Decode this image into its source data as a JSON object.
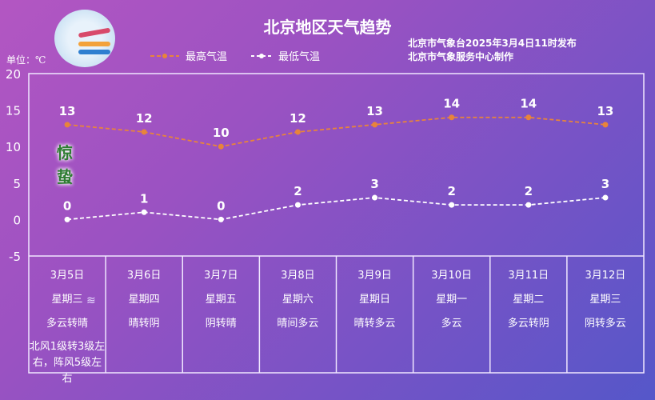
{
  "header": {
    "title": "北京地区天气趋势",
    "issuer_line1": "北京市气象台2025年3月4日11时发布",
    "issuer_line2": "北京市气象服务中心制作",
    "unit": "单位：℃",
    "solar_term": [
      "惊",
      "蛰"
    ]
  },
  "chart_data": {
    "type": "line",
    "categories": [
      "3月5日",
      "3月6日",
      "3月7日",
      "3月8日",
      "3月9日",
      "3月10日",
      "3月11日",
      "3月12日"
    ],
    "ylim": [
      -5,
      20
    ],
    "yticks": [
      20,
      15,
      10,
      5,
      0,
      -5
    ],
    "legend_position": "top",
    "series": [
      {
        "name": "最高气温",
        "values": [
          13,
          12,
          10,
          12,
          13,
          14,
          14,
          13
        ],
        "color": "#e8843a"
      },
      {
        "name": "最低气温",
        "values": [
          0,
          1,
          0,
          2,
          3,
          2,
          2,
          3
        ],
        "color": "#ffffff"
      }
    ]
  },
  "table": [
    {
      "date": "3月5日",
      "weekday": "星期三",
      "weather": "多云转晴",
      "wind": "北风1级转3级左右，阵风5级左右"
    },
    {
      "date": "3月6日",
      "weekday": "星期四",
      "weather": "晴转阴"
    },
    {
      "date": "3月7日",
      "weekday": "星期五",
      "weather": "阴转晴"
    },
    {
      "date": "3月8日",
      "weekday": "星期六",
      "weather": "晴间多云"
    },
    {
      "date": "3月9日",
      "weekday": "星期日",
      "weather": "晴转多云"
    },
    {
      "date": "3月10日",
      "weekday": "星期一",
      "weather": "多云"
    },
    {
      "date": "3月11日",
      "weekday": "星期二",
      "weather": "多云转阴"
    },
    {
      "date": "3月12日",
      "weekday": "星期三",
      "weather": "阴转多云"
    }
  ]
}
